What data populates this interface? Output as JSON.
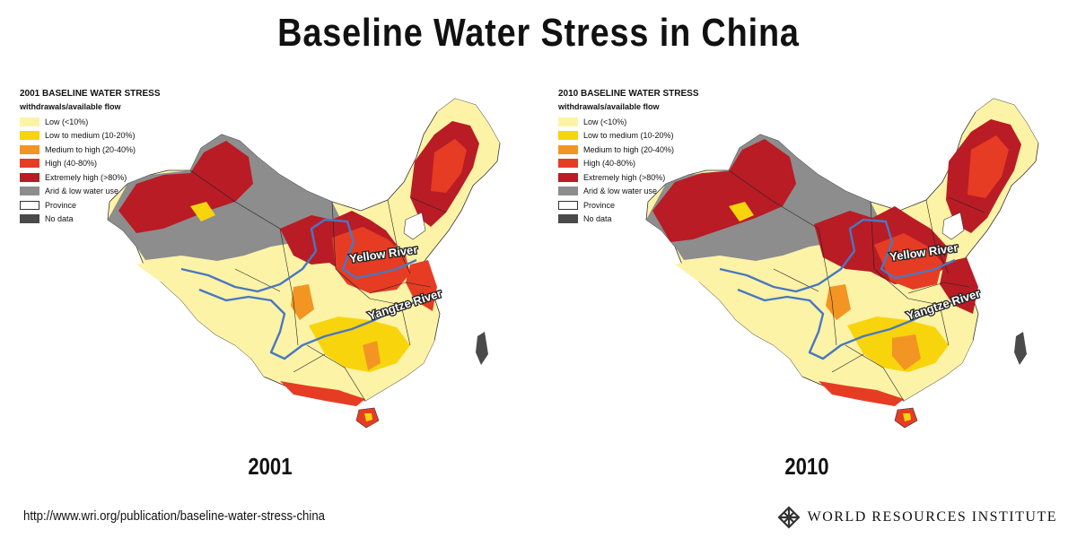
{
  "title": "Baseline Water Stress in China",
  "colors": {
    "low": "#fdf3a7",
    "low_medium": "#f8d40c",
    "medium_high": "#f39522",
    "high": "#e63c24",
    "extremely_high": "#b91c25",
    "arid": "#8d8d8d",
    "province": "#ffffff",
    "no_data": "#4a4a4a",
    "river": "#4978c0"
  },
  "maps": [
    {
      "legend_title": "2001 BASELINE WATER STRESS",
      "legend_subtitle": "withdrawals/available flow",
      "year_label": "2001",
      "rivers": {
        "yellow": "Yellow River",
        "yangtze": "Yangtze River"
      }
    },
    {
      "legend_title": "2010 BASELINE WATER STRESS",
      "legend_subtitle": "withdrawals/available flow",
      "year_label": "2010",
      "rivers": {
        "yellow": "Yellow River",
        "yangtze": "Yangtze River"
      }
    }
  ],
  "legend_items": [
    {
      "label": "Low (<10%)",
      "color": "#fdf3a7"
    },
    {
      "label": "Low to medium (10-20%)",
      "color": "#f8d40c"
    },
    {
      "label": "Medium to high (20-40%)",
      "color": "#f39522"
    },
    {
      "label": "High (40-80%)",
      "color": "#e63c24"
    },
    {
      "label": "Extremely high (>80%)",
      "color": "#b91c25"
    },
    {
      "label": "Arid & low water use",
      "color": "#8d8d8d"
    },
    {
      "label": "Province",
      "color": "#ffffff"
    },
    {
      "label": "No data",
      "color": "#4a4a4a"
    }
  ],
  "footer": {
    "url": "http://www.wri.org/publication/baseline-water-stress-china",
    "org": "WORLD RESOURCES INSTITUTE",
    "logo_icon": "wri-knot-logo-icon"
  }
}
